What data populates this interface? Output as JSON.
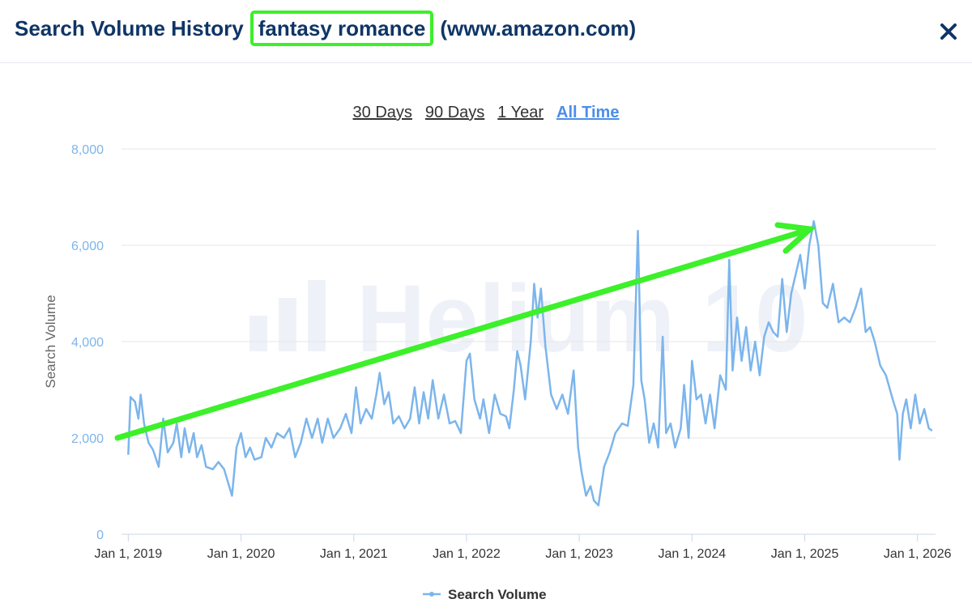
{
  "header": {
    "title": "Search Volume History",
    "keyword": "fantasy romance",
    "site": "(www.amazon.com)"
  },
  "range_buttons": [
    "30 Days",
    "90 Days",
    "1 Year",
    "All Time"
  ],
  "active_range": 3,
  "watermark": "Helium 10",
  "chart_data": {
    "type": "line",
    "y_label": "Search Volume",
    "x": [
      2019.0,
      2019.02,
      2019.06,
      2019.09,
      2019.11,
      2019.14,
      2019.18,
      2019.22,
      2019.27,
      2019.31,
      2019.35,
      2019.4,
      2019.43,
      2019.47,
      2019.5,
      2019.54,
      2019.58,
      2019.61,
      2019.65,
      2019.69,
      2019.75,
      2019.8,
      2019.85,
      2019.92,
      2019.96,
      2020.0,
      2020.04,
      2020.08,
      2020.12,
      2020.18,
      2020.22,
      2020.27,
      2020.32,
      2020.38,
      2020.43,
      2020.48,
      2020.53,
      2020.58,
      2020.63,
      2020.68,
      2020.72,
      2020.77,
      2020.82,
      2020.88,
      2020.93,
      2020.98,
      2021.02,
      2021.06,
      2021.11,
      2021.16,
      2021.2,
      2021.23,
      2021.27,
      2021.31,
      2021.35,
      2021.4,
      2021.45,
      2021.5,
      2021.54,
      2021.58,
      2021.62,
      2021.66,
      2021.7,
      2021.75,
      2021.8,
      2021.85,
      2021.9,
      2021.95,
      2022.0,
      2022.03,
      2022.07,
      2022.12,
      2022.15,
      2022.2,
      2022.25,
      2022.3,
      2022.35,
      2022.38,
      2022.42,
      2022.45,
      2022.48,
      2022.52,
      2022.57,
      2022.6,
      2022.63,
      2022.66,
      2022.7,
      2022.75,
      2022.8,
      2022.85,
      2022.9,
      2022.95,
      2022.99,
      2023.02,
      2023.06,
      2023.1,
      2023.13,
      2023.17,
      2023.22,
      2023.27,
      2023.32,
      2023.38,
      2023.43,
      2023.48,
      2023.52,
      2023.55,
      2023.58,
      2023.62,
      2023.66,
      2023.7,
      2023.74,
      2023.77,
      2023.81,
      2023.85,
      2023.9,
      2023.93,
      2023.97,
      2024.0,
      2024.04,
      2024.08,
      2024.12,
      2024.16,
      2024.2,
      2024.25,
      2024.3,
      2024.33,
      2024.36,
      2024.4,
      2024.44,
      2024.48,
      2024.52,
      2024.56,
      2024.6,
      2024.64,
      2024.68,
      2024.72,
      2024.76,
      2024.8,
      2024.84,
      2024.88,
      2024.92,
      2024.96,
      2025.0,
      2025.04,
      2025.08,
      2025.12,
      2025.16,
      2025.2,
      2025.25,
      2025.3,
      2025.35,
      2025.4,
      2025.45,
      2025.5,
      2025.54,
      2025.58,
      2025.62,
      2025.67,
      2025.72,
      2025.78,
      2025.82,
      2025.84,
      2025.87,
      2025.9,
      2025.94,
      2025.98,
      2026.02,
      2026.06,
      2026.1,
      2026.13
    ],
    "series": [
      {
        "name": "Search Volume",
        "color": "#7cb5ec",
        "values": [
          1650,
          2850,
          2750,
          2400,
          2900,
          2300,
          1900,
          1750,
          1400,
          2400,
          1700,
          1900,
          2300,
          1600,
          2200,
          1700,
          2100,
          1600,
          1850,
          1400,
          1350,
          1500,
          1350,
          800,
          1800,
          2100,
          1600,
          1800,
          1550,
          1600,
          2000,
          1800,
          2100,
          2000,
          2200,
          1600,
          1900,
          2400,
          2000,
          2400,
          1900,
          2400,
          2000,
          2200,
          2500,
          2100,
          3050,
          2300,
          2600,
          2400,
          2900,
          3350,
          2700,
          2950,
          2300,
          2450,
          2200,
          2400,
          3050,
          2300,
          2950,
          2400,
          3200,
          2400,
          2900,
          2300,
          2350,
          2100,
          3600,
          3750,
          2800,
          2400,
          2800,
          2100,
          2900,
          2500,
          2450,
          2200,
          3000,
          3800,
          3500,
          2800,
          4000,
          5200,
          4500,
          5100,
          3900,
          2900,
          2600,
          2900,
          2500,
          3400,
          1800,
          1300,
          800,
          1000,
          700,
          600,
          1400,
          1700,
          2100,
          2300,
          2250,
          3100,
          6300,
          3200,
          2800,
          1900,
          2300,
          1800,
          4100,
          2100,
          2300,
          1800,
          2200,
          3100,
          2000,
          3600,
          2800,
          2900,
          2300,
          2900,
          2200,
          3300,
          3000,
          5700,
          3400,
          4500,
          3600,
          4300,
          3400,
          4000,
          3300,
          4100,
          4400,
          4200,
          4100,
          5300,
          4200,
          5000,
          5400,
          5800,
          5100,
          6000,
          6500,
          6000,
          4800,
          4700,
          5200,
          4400,
          4500,
          4400,
          4700,
          5100,
          4200,
          4300,
          4000,
          3500,
          3300,
          2800,
          2500,
          1550,
          2500,
          2800,
          2200,
          2900,
          2300,
          2600,
          2200,
          2150
        ]
      }
    ],
    "xlim": [
      2018.94,
      2026.16
    ],
    "xticks": [
      {
        "value": 2019,
        "label": "Jan 1, 2019"
      },
      {
        "value": 2020,
        "label": "Jan 1, 2020"
      },
      {
        "value": 2021,
        "label": "Jan 1, 2021"
      },
      {
        "value": 2022,
        "label": "Jan 1, 2022"
      },
      {
        "value": 2023,
        "label": "Jan 1, 2023"
      },
      {
        "value": 2024,
        "label": "Jan 1, 2024"
      },
      {
        "value": 2025,
        "label": "Jan 1, 2025"
      },
      {
        "value": 2026,
        "label": "Jan 1, 2026"
      }
    ],
    "ylim": [
      0,
      8000
    ],
    "yticks": [
      0,
      {
        "value": 2000,
        "label": "2,000"
      },
      {
        "value": 4000,
        "label": "4,000"
      },
      {
        "value": 6000,
        "label": "6,000"
      },
      {
        "value": 8000,
        "label": "8,000"
      }
    ],
    "grid": true
  }
}
